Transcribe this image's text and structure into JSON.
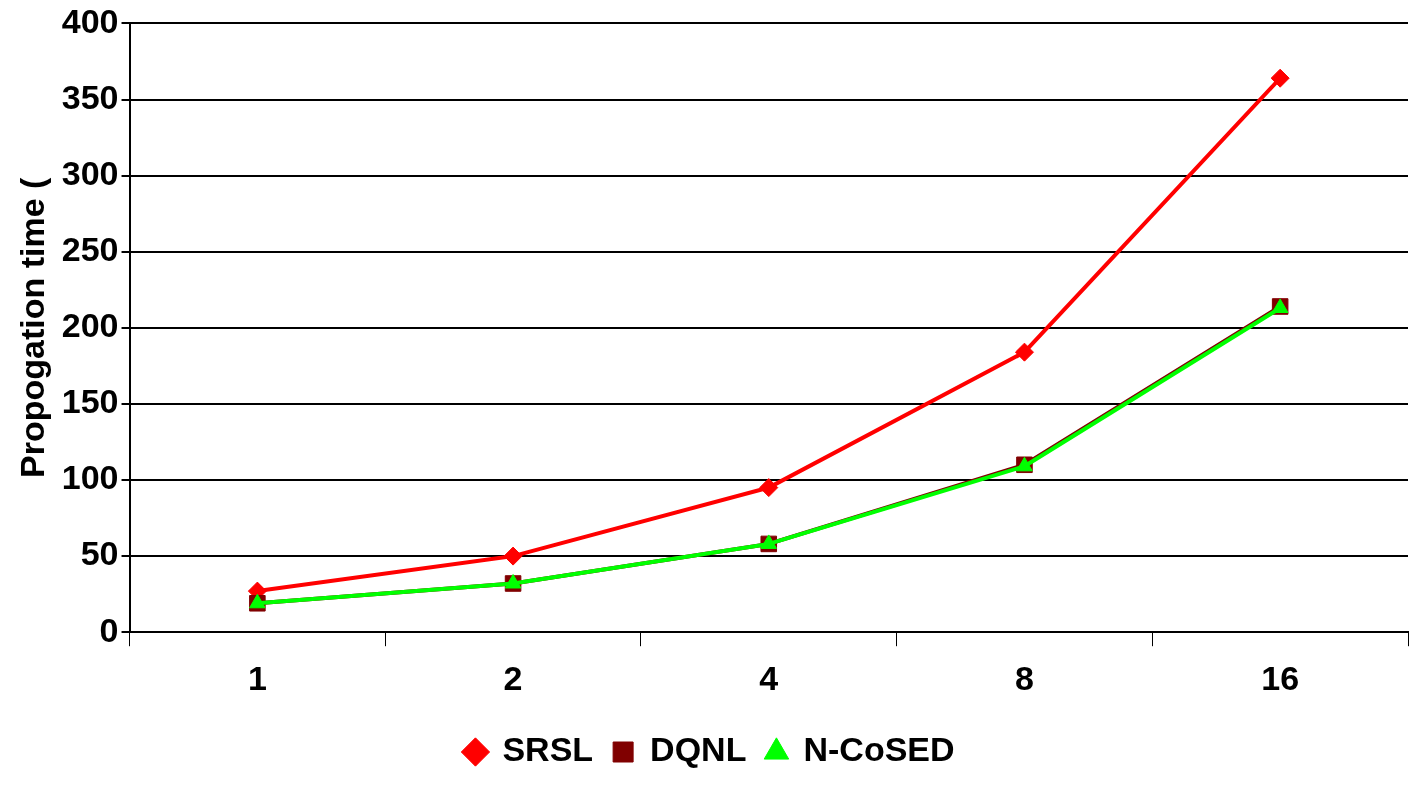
{
  "chart_data": {
    "type": "line",
    "ylabel": "Propogation time (",
    "categories": [
      "1",
      "2",
      "4",
      "8",
      "16"
    ],
    "series": [
      {
        "name": "SRSL",
        "color": "#ff0000",
        "marker": "diamond",
        "values": [
          27,
          50,
          95,
          184,
          364
        ]
      },
      {
        "name": "DQNL",
        "color": "#800000",
        "marker": "square",
        "values": [
          19,
          32,
          58,
          110,
          214
        ]
      },
      {
        "name": "N-CoSED",
        "color": "#00ff00",
        "marker": "triangle",
        "values": [
          19,
          32,
          58,
          109,
          213
        ]
      }
    ],
    "ylim": [
      0,
      400
    ],
    "yticks": [
      0,
      50,
      100,
      150,
      200,
      250,
      300,
      350,
      400
    ],
    "grid": "y",
    "legend": "bottom",
    "line_style": "solid"
  }
}
